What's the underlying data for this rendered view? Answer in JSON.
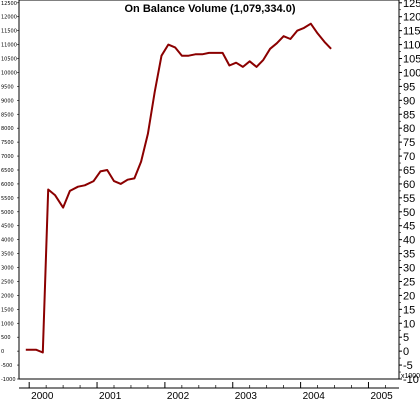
{
  "chart_data": {
    "type": "line",
    "title": "On Balance Volume (1,079,334.0)",
    "right_axis_unit": "x1000",
    "left_ticks": [
      "12500",
      "12000",
      "11500",
      "11000",
      "10500",
      "10000",
      "9500",
      "9000",
      "8500",
      "8000",
      "7500",
      "7000",
      "6500",
      "6000",
      "5500",
      "5000",
      "4500",
      "4000",
      "3500",
      "3000",
      "2500",
      "2000",
      "1500",
      "1000",
      "500",
      "0",
      "-500",
      "-1000"
    ],
    "right_ticks": [
      "125",
      "120",
      "115",
      "110",
      "105",
      "100",
      "95",
      "90",
      "85",
      "80",
      "75",
      "70",
      "65",
      "60",
      "55",
      "50",
      "45",
      "40",
      "35",
      "30",
      "25",
      "20",
      "15",
      "10",
      "5",
      "0",
      "-5",
      "-10"
    ],
    "x_ticks": [
      "2000",
      "2001",
      "2002",
      "2003",
      "2004",
      "2005"
    ],
    "ylim": [
      -10,
      126
    ],
    "xlim": [
      1999.85,
      2005.45
    ],
    "grid": false,
    "line_color": "#8b0000",
    "series": [
      {
        "x": [
          1999.95,
          2000.1,
          2000.2,
          2000.28,
          2000.38,
          2000.5,
          2000.6,
          2000.72,
          2000.82,
          2000.95,
          2001.05,
          2001.15,
          2001.25,
          2001.35,
          2001.45,
          2001.55,
          2001.65,
          2001.75,
          2001.85,
          2001.95,
          2002.05,
          2002.15,
          2002.25,
          2002.35,
          2002.45,
          2002.55,
          2002.65,
          2002.75,
          2002.85,
          2002.95,
          2003.05,
          2003.15,
          2003.25,
          2003.35,
          2003.45,
          2003.55,
          2003.65,
          2003.75,
          2003.85,
          2003.95,
          2004.05,
          2004.15,
          2004.25,
          2004.35,
          2004.45
        ],
        "y": [
          0.5,
          0.5,
          -0.5,
          58,
          56,
          51.5,
          57.5,
          59,
          59.5,
          61,
          64.5,
          65,
          61,
          60,
          61.5,
          62,
          68,
          78,
          93,
          106,
          110,
          109,
          106,
          106,
          106.5,
          106.5,
          107,
          107,
          107,
          102.5,
          103.5,
          102,
          104,
          102,
          104.5,
          108.5,
          110.5,
          113,
          112,
          115,
          116,
          117.5,
          114,
          111,
          108.5
        ]
      }
    ]
  }
}
